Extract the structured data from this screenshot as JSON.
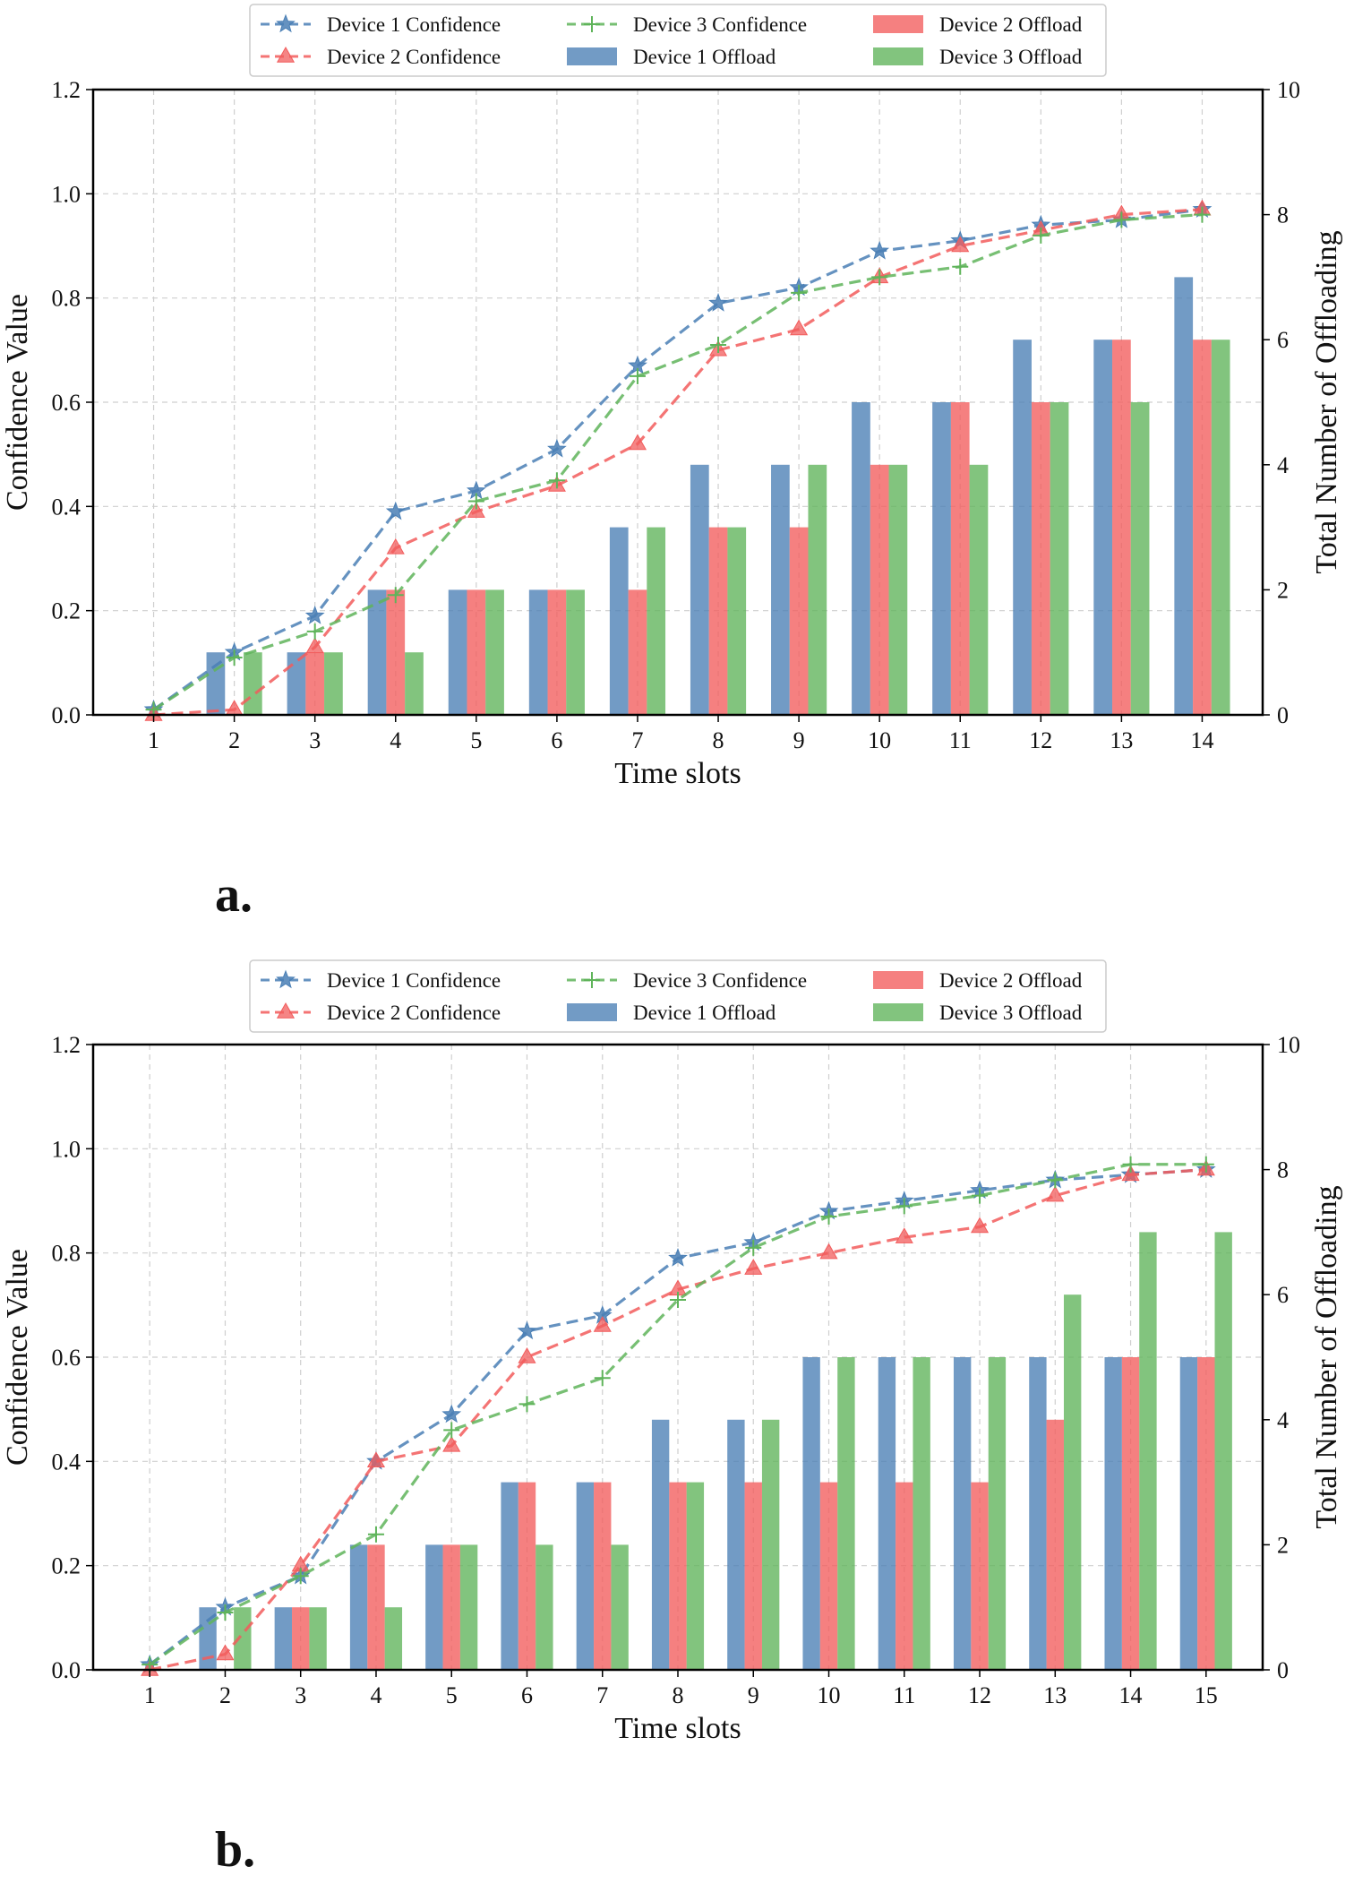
{
  "colors": {
    "device1": "#4a7fb5",
    "device2": "#f25c5c",
    "device3": "#5fb45a",
    "grid": "#cfcfcf",
    "axis": "#000000"
  },
  "chart_data": [
    {
      "panel_label": "a.",
      "type": "bar+line",
      "xlabel": "Time slots",
      "ylabel": "Confidence Value",
      "y2label": "Total Number of Offloading",
      "ylim": [
        0,
        1.2
      ],
      "y2lim": [
        0,
        10
      ],
      "yticks": [
        "0.0",
        "0.2",
        "0.4",
        "0.6",
        "0.8",
        "1.0",
        "1.2"
      ],
      "y2ticks": [
        "0",
        "2",
        "4",
        "6",
        "8",
        "10"
      ],
      "grid": true,
      "legend": {
        "placement": "top-center",
        "labels": [
          "Device 1 Confidence",
          "Device 2 Confidence",
          "Device 3 Confidence",
          "Device 1 Offload",
          "Device 2 Offload",
          "Device 3 Offload"
        ]
      },
      "x": [
        "1",
        "2",
        "3",
        "4",
        "5",
        "6",
        "7",
        "8",
        "9",
        "10",
        "11",
        "12",
        "13",
        "14"
      ],
      "confidence_series": [
        {
          "name": "Device 1 Confidence",
          "values": [
            0.01,
            0.12,
            0.19,
            0.39,
            0.43,
            0.51,
            0.67,
            0.79,
            0.82,
            0.89,
            0.91,
            0.94,
            0.95,
            0.97
          ]
        },
        {
          "name": "Device 2 Confidence",
          "values": [
            0.0,
            0.01,
            0.13,
            0.32,
            0.39,
            0.44,
            0.52,
            0.7,
            0.74,
            0.84,
            0.9,
            0.93,
            0.96,
            0.97
          ]
        },
        {
          "name": "Device 3 Confidence",
          "values": [
            0.01,
            0.11,
            0.16,
            0.23,
            0.41,
            0.45,
            0.65,
            0.71,
            0.81,
            0.84,
            0.86,
            0.92,
            0.95,
            0.96
          ]
        }
      ],
      "offload_series": [
        {
          "name": "Device 1 Offload",
          "values": [
            0,
            1,
            1,
            2,
            2,
            2,
            3,
            4,
            4,
            5,
            5,
            6,
            6,
            7
          ]
        },
        {
          "name": "Device 2 Offload",
          "values": [
            0,
            0,
            1,
            2,
            2,
            2,
            2,
            3,
            3,
            4,
            5,
            5,
            6,
            6
          ]
        },
        {
          "name": "Device 3 Offload",
          "values": [
            0,
            1,
            1,
            1,
            2,
            2,
            3,
            3,
            4,
            4,
            4,
            5,
            5,
            6
          ]
        }
      ]
    },
    {
      "panel_label": "b.",
      "type": "bar+line",
      "xlabel": "Time slots",
      "ylabel": "Confidence Value",
      "y2label": "Total Number of Offloading",
      "ylim": [
        0,
        1.2
      ],
      "y2lim": [
        0,
        10
      ],
      "yticks": [
        "0.0",
        "0.2",
        "0.4",
        "0.6",
        "0.8",
        "1.0",
        "1.2"
      ],
      "y2ticks": [
        "0",
        "2",
        "4",
        "6",
        "8",
        "10"
      ],
      "grid": true,
      "legend": {
        "placement": "top-center",
        "labels": [
          "Device 1 Confidence",
          "Device 2 Confidence",
          "Device 3 Confidence",
          "Device 1 Offload",
          "Device 2 Offload",
          "Device 3 Offload"
        ]
      },
      "x": [
        "1",
        "2",
        "3",
        "4",
        "5",
        "6",
        "7",
        "8",
        "9",
        "10",
        "11",
        "12",
        "13",
        "14",
        "15"
      ],
      "confidence_series": [
        {
          "name": "Device 1 Confidence",
          "values": [
            0.01,
            0.12,
            0.18,
            0.4,
            0.49,
            0.65,
            0.68,
            0.79,
            0.82,
            0.88,
            0.9,
            0.92,
            0.94,
            0.95,
            0.96
          ]
        },
        {
          "name": "Device 2 Confidence",
          "values": [
            0.0,
            0.03,
            0.2,
            0.4,
            0.43,
            0.6,
            0.66,
            0.73,
            0.77,
            0.8,
            0.83,
            0.85,
            0.91,
            0.95,
            0.96
          ]
        },
        {
          "name": "Device 3 Confidence",
          "values": [
            0.01,
            0.11,
            0.18,
            0.26,
            0.46,
            0.51,
            0.56,
            0.71,
            0.81,
            0.87,
            0.89,
            0.91,
            0.94,
            0.97,
            0.97
          ]
        }
      ],
      "offload_series": [
        {
          "name": "Device 1 Offload",
          "values": [
            0,
            1,
            1,
            2,
            2,
            3,
            3,
            4,
            4,
            5,
            5,
            5,
            5,
            5,
            5
          ]
        },
        {
          "name": "Device 2 Offload",
          "values": [
            0,
            0,
            1,
            2,
            2,
            3,
            3,
            3,
            3,
            3,
            3,
            3,
            4,
            5,
            5
          ]
        },
        {
          "name": "Device 3 Offload",
          "values": [
            0,
            1,
            1,
            1,
            2,
            2,
            2,
            3,
            4,
            5,
            5,
            5,
            6,
            7,
            7
          ]
        }
      ]
    }
  ]
}
